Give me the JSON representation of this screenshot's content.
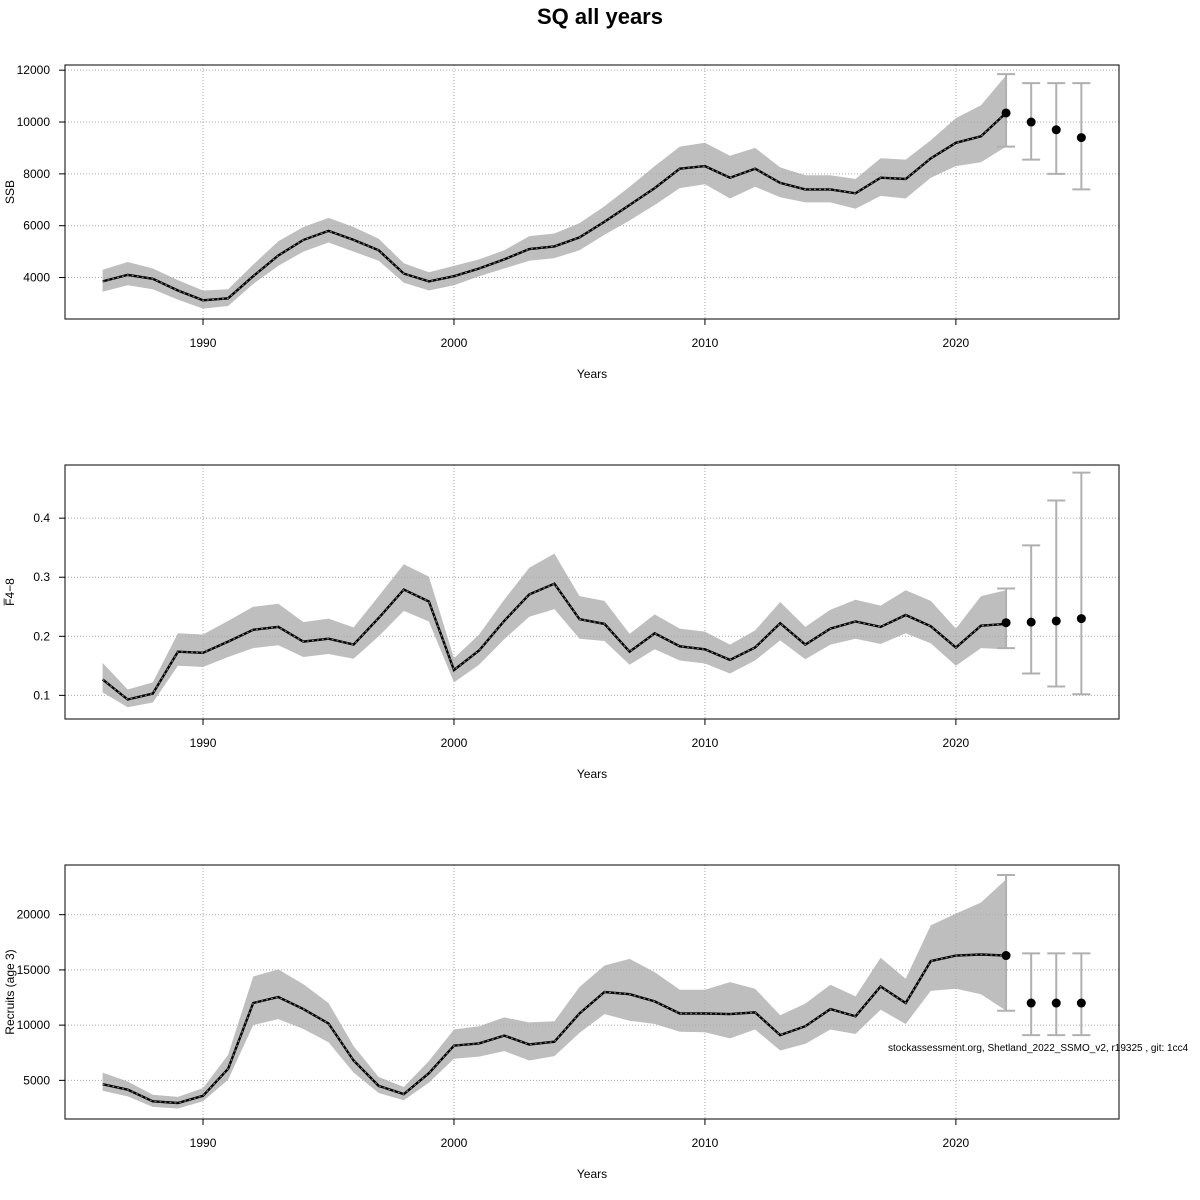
{
  "title": "SQ all years",
  "footnote": "stockassessment.org, Shetland_2022_SSMO_v2, r19325 , git: 1cc4",
  "colors": {
    "band": "#bebebe",
    "errorbar": "#b0b0b0",
    "line": "#000000",
    "grid": "#a9a9a9"
  },
  "chart_data": [
    {
      "type": "line",
      "panel": "ssb",
      "title": "",
      "xlabel": "Years",
      "ylabel": "SSB",
      "xlim": [
        1984.5,
        2026.5
      ],
      "ylim": [
        2400,
        12200
      ],
      "xticks": [
        1990,
        2000,
        2010,
        2020
      ],
      "yticks": [
        4000,
        6000,
        8000,
        10000,
        12000
      ],
      "x": [
        1986,
        1987,
        1988,
        1989,
        1990,
        1991,
        1992,
        1993,
        1994,
        1995,
        1996,
        1997,
        1998,
        1999,
        2000,
        2001,
        2002,
        2003,
        2004,
        2005,
        2006,
        2007,
        2008,
        2009,
        2010,
        2011,
        2012,
        2013,
        2014,
        2015,
        2016,
        2017,
        2018,
        2019,
        2020,
        2021,
        2022
      ],
      "estimate": [
        3850,
        4100,
        3950,
        3500,
        3120,
        3200,
        4050,
        4850,
        5450,
        5800,
        5450,
        5050,
        4150,
        3850,
        4050,
        4350,
        4700,
        5100,
        5200,
        5550,
        6150,
        6800,
        7450,
        8200,
        8300,
        7850,
        8200,
        7650,
        7400,
        7400,
        7250,
        7850,
        7800,
        8600,
        9200,
        9450,
        10350
      ],
      "lower": [
        3450,
        3700,
        3550,
        3150,
        2800,
        2900,
        3750,
        4450,
        5000,
        5350,
        5000,
        4650,
        3800,
        3500,
        3700,
        4050,
        4350,
        4650,
        4750,
        5050,
        5650,
        6200,
        6800,
        7450,
        7600,
        7050,
        7500,
        7100,
        6900,
        6900,
        6650,
        7150,
        7050,
        7850,
        8300,
        8450,
        9050
      ],
      "upper": [
        4300,
        4600,
        4350,
        3900,
        3500,
        3550,
        4500,
        5400,
        5950,
        6300,
        5950,
        5500,
        4550,
        4200,
        4450,
        4700,
        5050,
        5600,
        5700,
        6100,
        6750,
        7500,
        8300,
        9050,
        9200,
        8700,
        9000,
        8250,
        7950,
        7950,
        7800,
        8600,
        8550,
        9300,
        10150,
        10650,
        11800
      ],
      "forecast": {
        "x": [
          2022,
          2023,
          2024,
          2025
        ],
        "median": [
          10350,
          10000,
          9700,
          9400
        ],
        "low": [
          9050,
          8550,
          8000,
          7400
        ],
        "high": [
          11850,
          11500,
          11500,
          11500
        ]
      }
    },
    {
      "type": "line",
      "panel": "fbar",
      "title": "",
      "xlabel": "Years",
      "ylabel": "F̅4−8",
      "xlim": [
        1984.5,
        2026.5
      ],
      "ylim": [
        0.06,
        0.49
      ],
      "xticks": [
        1990,
        2000,
        2010,
        2020
      ],
      "yticks": [
        0.1,
        0.2,
        0.3,
        0.4
      ],
      "x": [
        1986,
        1987,
        1988,
        1989,
        1990,
        1991,
        1992,
        1993,
        1994,
        1995,
        1996,
        1997,
        1998,
        1999,
        2000,
        2001,
        2002,
        2003,
        2004,
        2005,
        2006,
        2007,
        2008,
        2009,
        2010,
        2011,
        2012,
        2013,
        2014,
        2015,
        2016,
        2017,
        2018,
        2019,
        2020,
        2021,
        2022
      ],
      "estimate": [
        0.127,
        0.093,
        0.103,
        0.174,
        0.172,
        0.191,
        0.211,
        0.216,
        0.191,
        0.196,
        0.186,
        0.231,
        0.279,
        0.259,
        0.143,
        0.176,
        0.226,
        0.271,
        0.289,
        0.229,
        0.221,
        0.174,
        0.205,
        0.183,
        0.178,
        0.16,
        0.181,
        0.222,
        0.186,
        0.213,
        0.225,
        0.216,
        0.236,
        0.217,
        0.181,
        0.218,
        0.221
      ],
      "lower": [
        0.105,
        0.08,
        0.088,
        0.15,
        0.148,
        0.165,
        0.18,
        0.185,
        0.165,
        0.17,
        0.162,
        0.2,
        0.243,
        0.225,
        0.122,
        0.152,
        0.195,
        0.233,
        0.246,
        0.196,
        0.192,
        0.152,
        0.178,
        0.159,
        0.154,
        0.137,
        0.159,
        0.193,
        0.161,
        0.186,
        0.196,
        0.187,
        0.205,
        0.188,
        0.15,
        0.18,
        0.178
      ],
      "upper": [
        0.155,
        0.11,
        0.122,
        0.205,
        0.203,
        0.226,
        0.25,
        0.255,
        0.224,
        0.23,
        0.215,
        0.268,
        0.322,
        0.301,
        0.163,
        0.203,
        0.262,
        0.316,
        0.34,
        0.268,
        0.26,
        0.204,
        0.237,
        0.213,
        0.208,
        0.186,
        0.21,
        0.258,
        0.216,
        0.245,
        0.262,
        0.252,
        0.278,
        0.26,
        0.213,
        0.268,
        0.278
      ],
      "forecast": {
        "x": [
          2022,
          2023,
          2024,
          2025
        ],
        "median": [
          0.223,
          0.224,
          0.226,
          0.23
        ],
        "low": [
          0.18,
          0.137,
          0.115,
          0.102
        ],
        "high": [
          0.281,
          0.354,
          0.43,
          0.477
        ]
      }
    },
    {
      "type": "line",
      "panel": "recruits",
      "title": "",
      "xlabel": "Years",
      "ylabel": "Recruits (age 3)",
      "xlim": [
        1984.5,
        2026.5
      ],
      "ylim": [
        1500,
        24500
      ],
      "xticks": [
        1990,
        2000,
        2010,
        2020
      ],
      "yticks": [
        5000,
        10000,
        15000,
        20000
      ],
      "x": [
        1986,
        1987,
        1988,
        1989,
        1990,
        1991,
        1992,
        1993,
        1994,
        1995,
        1996,
        1997,
        1998,
        1999,
        2000,
        2001,
        2002,
        2003,
        2004,
        2005,
        2006,
        2007,
        2008,
        2009,
        2010,
        2011,
        2012,
        2013,
        2014,
        2015,
        2016,
        2017,
        2018,
        2019,
        2020,
        2021,
        2022
      ],
      "estimate": [
        4650,
        4150,
        3100,
        2950,
        3600,
        6050,
        12000,
        12550,
        11450,
        10150,
        6800,
        4500,
        3750,
        5650,
        8150,
        8350,
        9050,
        8250,
        8500,
        11050,
        13000,
        12800,
        12150,
        11050,
        11050,
        11000,
        11150,
        9100,
        9900,
        11450,
        10800,
        13500,
        12000,
        15800,
        16300,
        16400,
        16300
      ],
      "lower": [
        4050,
        3550,
        2600,
        2450,
        3100,
        5050,
        10000,
        10550,
        9650,
        8450,
        5700,
        3850,
        3200,
        4800,
        6950,
        7150,
        7650,
        6800,
        7200,
        9300,
        11000,
        10400,
        10100,
        9400,
        9350,
        8800,
        9600,
        7700,
        8300,
        9600,
        9200,
        11400,
        10100,
        13100,
        13300,
        12800,
        11300
      ],
      "upper": [
        5700,
        4900,
        3700,
        3500,
        4300,
        7300,
        14400,
        15050,
        13700,
        12000,
        8100,
        5300,
        4400,
        6750,
        9600,
        9900,
        10700,
        10250,
        10350,
        13450,
        15400,
        16000,
        14800,
        13200,
        13200,
        13900,
        13300,
        10900,
        11950,
        13650,
        12600,
        16100,
        14200,
        19050,
        20100,
        21100,
        23200
      ],
      "forecast": {
        "x": [
          2022,
          2023,
          2024,
          2025
        ],
        "median": [
          16300,
          12000,
          12000,
          12000
        ],
        "low": [
          11300,
          9100,
          9100,
          9100
        ],
        "high": [
          23600,
          16500,
          16500,
          16500
        ]
      }
    }
  ]
}
